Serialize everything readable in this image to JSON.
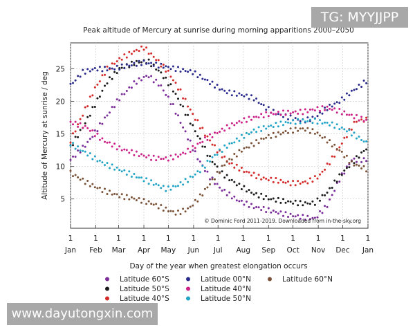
{
  "watermark_top": "TG: MYYJJPP",
  "watermark_bottom": "www.dayutongxin.com",
  "chart_data": {
    "type": "scatter",
    "title": "Peak altitude of Mercury at sunrise during morning apparitions 2000–2050",
    "xlabel": "Day of the year when greatest elongation occurs",
    "ylabel": "Altitude of Mercury at sunrise / deg",
    "credit": "© Dominic Ford 2011-2019. Downloaded from in-the-sky.org",
    "xlim": [
      0,
      365
    ],
    "ylim": [
      0.5,
      29
    ],
    "x_ticks": [
      {
        "day": 0,
        "top": "1",
        "bottom": "Jan"
      },
      {
        "day": 31,
        "top": "1",
        "bottom": "Feb"
      },
      {
        "day": 59,
        "top": "1",
        "bottom": "Mar"
      },
      {
        "day": 90,
        "top": "1",
        "bottom": "Apr"
      },
      {
        "day": 120,
        "top": "1",
        "bottom": "May"
      },
      {
        "day": 151,
        "top": "1",
        "bottom": "Jun"
      },
      {
        "day": 181,
        "top": "1",
        "bottom": "Jul"
      },
      {
        "day": 212,
        "top": "1",
        "bottom": "Aug"
      },
      {
        "day": 243,
        "top": "1",
        "bottom": "Sep"
      },
      {
        "day": 273,
        "top": "1",
        "bottom": "Oct"
      },
      {
        "day": 304,
        "top": "1",
        "bottom": "Nov"
      },
      {
        "day": 334,
        "top": "1",
        "bottom": "Dec"
      },
      {
        "day": 365,
        "top": "1",
        "bottom": "Jan"
      }
    ],
    "y_ticks": [
      5,
      10,
      15,
      20,
      25
    ],
    "grid": true,
    "legend_position": "bottom",
    "series": [
      {
        "name": "Latitude 60°S",
        "color": "#7b2d9a",
        "points": [
          [
            0,
            11
          ],
          [
            20,
            13.5
          ],
          [
            40,
            17
          ],
          [
            60,
            20.5
          ],
          [
            80,
            23
          ],
          [
            95,
            24
          ],
          [
            110,
            22.5
          ],
          [
            125,
            19.5
          ],
          [
            140,
            15.5
          ],
          [
            155,
            11.5
          ],
          [
            170,
            8.5
          ],
          [
            185,
            6.5
          ],
          [
            205,
            4.8
          ],
          [
            225,
            3.8
          ],
          [
            245,
            3.2
          ],
          [
            265,
            2.6
          ],
          [
            285,
            2.2
          ],
          [
            300,
            2
          ],
          [
            315,
            4
          ],
          [
            330,
            8
          ],
          [
            345,
            11
          ],
          [
            365,
            11
          ]
        ]
      },
      {
        "name": "Latitude 50°S",
        "color": "#1a1a1a",
        "points": [
          [
            0,
            13
          ],
          [
            15,
            16
          ],
          [
            30,
            19.5
          ],
          [
            45,
            23
          ],
          [
            60,
            25
          ],
          [
            80,
            26
          ],
          [
            95,
            26.2
          ],
          [
            110,
            24.5
          ],
          [
            125,
            22
          ],
          [
            140,
            18.5
          ],
          [
            155,
            15
          ],
          [
            170,
            11.5
          ],
          [
            185,
            9
          ],
          [
            205,
            7.2
          ],
          [
            225,
            5.8
          ],
          [
            245,
            5
          ],
          [
            265,
            4.6
          ],
          [
            285,
            4.3
          ],
          [
            300,
            4.4
          ],
          [
            315,
            6
          ],
          [
            330,
            8.5
          ],
          [
            345,
            10.5
          ],
          [
            365,
            13
          ]
        ]
      },
      {
        "name": "Latitude 40°S",
        "color": "#d42a2a",
        "points": [
          [
            0,
            14
          ],
          [
            15,
            18
          ],
          [
            30,
            22
          ],
          [
            45,
            25
          ],
          [
            60,
            26.5
          ],
          [
            75,
            27.5
          ],
          [
            90,
            28.3
          ],
          [
            105,
            26.5
          ],
          [
            120,
            24.5
          ],
          [
            135,
            21.5
          ],
          [
            150,
            18
          ],
          [
            165,
            15
          ],
          [
            180,
            12.5
          ],
          [
            195,
            10.5
          ],
          [
            215,
            9.2
          ],
          [
            235,
            8.2
          ],
          [
            255,
            7.8
          ],
          [
            270,
            7.4
          ],
          [
            290,
            7.6
          ],
          [
            305,
            8.5
          ],
          [
            320,
            11
          ],
          [
            335,
            14
          ],
          [
            350,
            17
          ],
          [
            365,
            17.2
          ]
        ]
      },
      {
        "name": "Latitude 00°N",
        "color": "#2a2a8c",
        "points": [
          [
            0,
            22.5
          ],
          [
            15,
            24.5
          ],
          [
            30,
            25
          ],
          [
            50,
            25
          ],
          [
            70,
            25.5
          ],
          [
            90,
            26
          ],
          [
            110,
            25.5
          ],
          [
            130,
            25
          ],
          [
            150,
            24.5
          ],
          [
            170,
            23
          ],
          [
            190,
            21.5
          ],
          [
            210,
            21
          ],
          [
            225,
            20.5
          ],
          [
            240,
            19
          ],
          [
            255,
            18
          ],
          [
            270,
            17.5
          ],
          [
            285,
            17
          ],
          [
            300,
            17.5
          ],
          [
            315,
            19
          ],
          [
            330,
            20
          ],
          [
            345,
            21.5
          ],
          [
            365,
            23.3
          ]
        ]
      },
      {
        "name": "Latitude 40°N",
        "color": "#cc2288",
        "points": [
          [
            0,
            16.8
          ],
          [
            20,
            16
          ],
          [
            40,
            14
          ],
          [
            60,
            12.8
          ],
          [
            80,
            12
          ],
          [
            100,
            11.3
          ],
          [
            120,
            11.2
          ],
          [
            135,
            11.8
          ],
          [
            150,
            12.8
          ],
          [
            165,
            14.2
          ],
          [
            180,
            15.2
          ],
          [
            195,
            16.2
          ],
          [
            210,
            17
          ],
          [
            225,
            17.5
          ],
          [
            240,
            18
          ],
          [
            255,
            18.2
          ],
          [
            270,
            18.3
          ],
          [
            285,
            18.4
          ],
          [
            300,
            18.8
          ],
          [
            315,
            19
          ],
          [
            330,
            18.5
          ],
          [
            345,
            17.8
          ],
          [
            365,
            17
          ]
        ]
      },
      {
        "name": "Latitude 50°N",
        "color": "#22a4c6",
        "points": [
          [
            0,
            13.5
          ],
          [
            20,
            12
          ],
          [
            40,
            10.5
          ],
          [
            60,
            9.5
          ],
          [
            80,
            8.5
          ],
          [
            100,
            7.5
          ],
          [
            118,
            6.5
          ],
          [
            130,
            7
          ],
          [
            145,
            8
          ],
          [
            160,
            9.5
          ],
          [
            175,
            11.5
          ],
          [
            190,
            13
          ],
          [
            210,
            14.5
          ],
          [
            225,
            15.5
          ],
          [
            240,
            16
          ],
          [
            255,
            16.5
          ],
          [
            270,
            16.8
          ],
          [
            285,
            17
          ],
          [
            300,
            17
          ],
          [
            320,
            16.5
          ],
          [
            340,
            15.5
          ],
          [
            365,
            13.5
          ]
        ]
      },
      {
        "name": "Latitude 60°N",
        "color": "#7a5238",
        "points": [
          [
            0,
            9
          ],
          [
            20,
            7.5
          ],
          [
            40,
            6.3
          ],
          [
            60,
            5.5
          ],
          [
            80,
            5
          ],
          [
            100,
            4.3
          ],
          [
            115,
            3.5
          ],
          [
            130,
            2.8
          ],
          [
            145,
            3.5
          ],
          [
            160,
            5.5
          ],
          [
            175,
            8
          ],
          [
            190,
            10.5
          ],
          [
            210,
            12.5
          ],
          [
            225,
            13.5
          ],
          [
            240,
            14.5
          ],
          [
            255,
            15
          ],
          [
            270,
            15.5
          ],
          [
            285,
            15.8
          ],
          [
            300,
            15.3
          ],
          [
            315,
            14
          ],
          [
            330,
            12.5
          ],
          [
            345,
            10.5
          ],
          [
            365,
            9.5
          ]
        ]
      }
    ]
  }
}
